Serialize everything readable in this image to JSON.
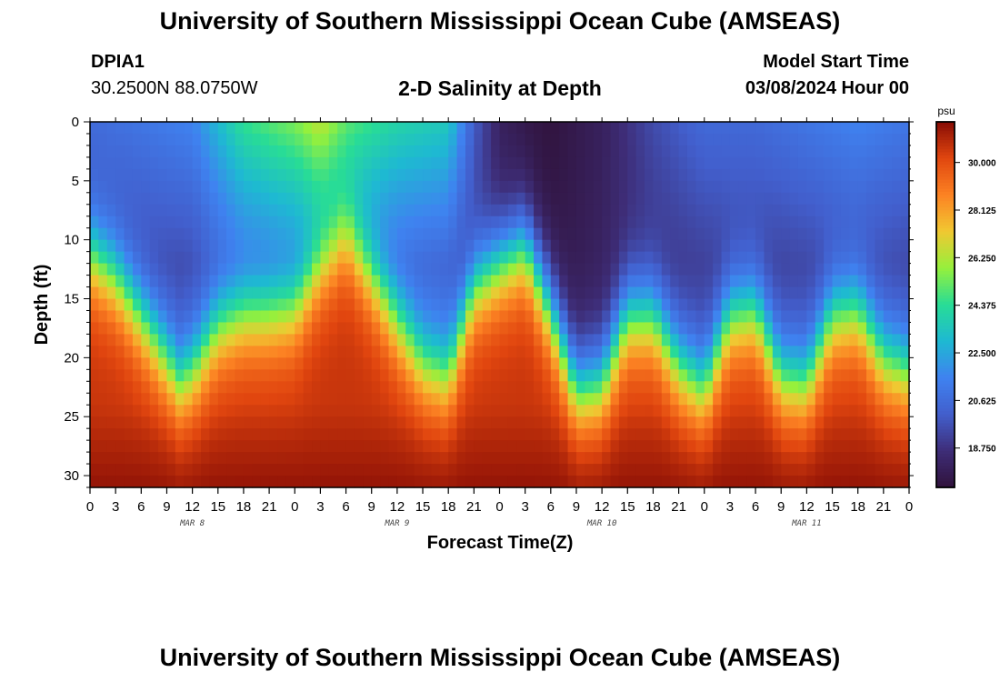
{
  "header": {
    "title": "University of Southern Mississippi Ocean Cube (AMSEAS)",
    "station_id": "DPIA1",
    "station_coords": "30.2500N  88.0750W",
    "plot_title": "2-D Salinity at Depth",
    "model_start_label": "Model Start Time",
    "model_start_value": "03/08/2024 Hour 00"
  },
  "footer": {
    "title": "University of Southern Mississippi Ocean Cube (AMSEAS)"
  },
  "chart_data": {
    "type": "heatmap",
    "title": "2-D Salinity at Depth",
    "xlabel": "Forecast Time(Z)",
    "ylabel": "Depth (ft)",
    "x_range_hours": [
      0,
      96
    ],
    "x_tick_labels": [
      "0",
      "3",
      "6",
      "9",
      "12",
      "15",
      "18",
      "21",
      "0",
      "3",
      "6",
      "9",
      "12",
      "15",
      "18",
      "21",
      "0",
      "3",
      "6",
      "9",
      "12",
      "15",
      "18",
      "21",
      "0",
      "3",
      "6",
      "9",
      "12",
      "15",
      "18",
      "21",
      "0"
    ],
    "day_labels": [
      "MAR 8",
      "MAR 9",
      "MAR 10",
      "MAR 11"
    ],
    "y_range_ft": [
      0,
      31
    ],
    "y_ticks": [
      "0",
      "5",
      "10",
      "15",
      "20",
      "25",
      "30"
    ],
    "colorbar": {
      "unit": "psu",
      "range": [
        17.2,
        31.6
      ],
      "tick_labels": [
        "30.000",
        "28.125",
        "26.250",
        "24.375",
        "22.500",
        "20.625",
        "18.750"
      ]
    },
    "halocline_depth_ft": {
      "hours": [
        0,
        3,
        6,
        9,
        10.5,
        12,
        15,
        18,
        21,
        24,
        27,
        30,
        33,
        36,
        39,
        42,
        45,
        48,
        51,
        54,
        57,
        60,
        63,
        66,
        69,
        72,
        75,
        78,
        81,
        84,
        87,
        90,
        93,
        96
      ],
      "depth": [
        11,
        13,
        16.5,
        20,
        21.8,
        21,
        17.5,
        16.5,
        16.5,
        16,
        12,
        9,
        13,
        17,
        20.5,
        21.5,
        14,
        12,
        10.5,
        16,
        22.5,
        22,
        16.5,
        16.5,
        20.5,
        22.5,
        16.5,
        16,
        21.5,
        22,
        16.5,
        16,
        20,
        21
      ]
    },
    "surface_salinity_psu": {
      "hours": [
        0,
        6,
        12,
        18,
        24,
        27,
        30,
        36,
        42,
        45,
        48,
        51,
        54,
        60,
        66,
        72,
        78,
        84,
        90,
        96
      ],
      "value": [
        20.5,
        21.0,
        21.5,
        24.5,
        25.5,
        26.5,
        25.0,
        24.0,
        23.5,
        20.0,
        18.0,
        17.5,
        17.3,
        18.0,
        19.5,
        20.5,
        20.5,
        21.0,
        21.5,
        21.0
      ]
    },
    "upper_layer_salinity_psu": 18.2,
    "lower_layer_salinity_psu": 30.6,
    "bottom_salinity_psu": 31.4
  }
}
